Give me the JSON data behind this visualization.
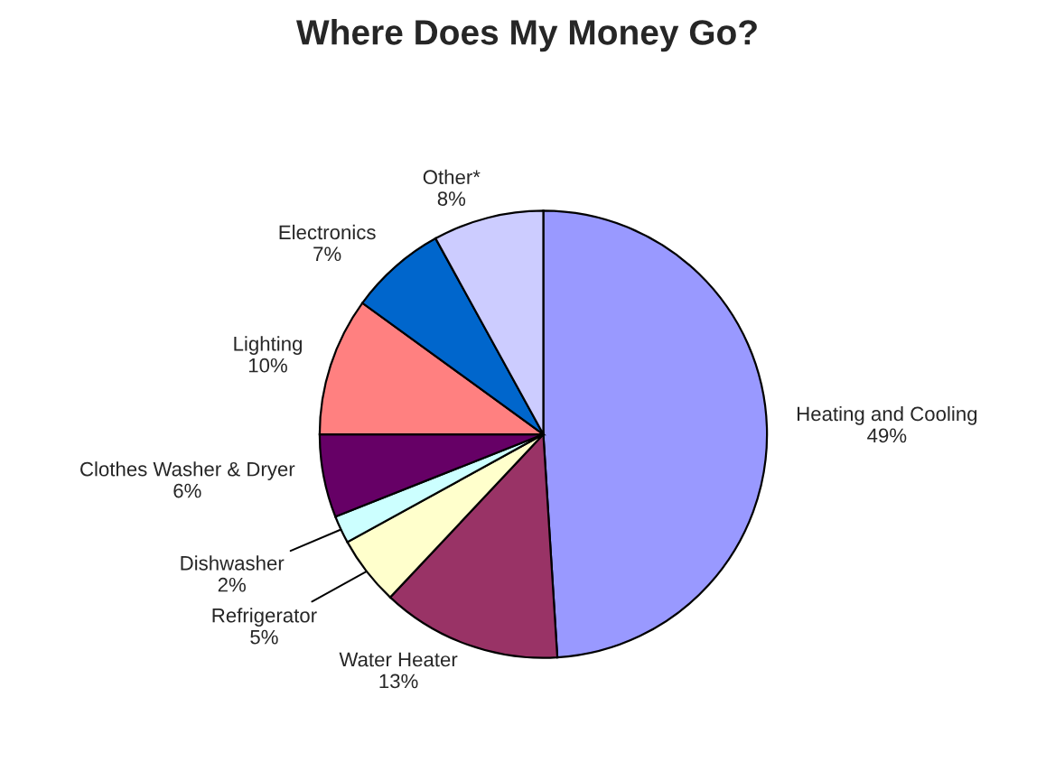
{
  "chart_data": {
    "type": "pie",
    "title": "Where Does My Money Go?",
    "categories": [
      "Heating and Cooling",
      "Water Heater",
      "Refrigerator",
      "Dishwasher",
      "Clothes Washer & Dryer",
      "Lighting",
      "Electronics",
      "Other*"
    ],
    "values": [
      49,
      13,
      5,
      2,
      6,
      10,
      7,
      8
    ],
    "value_labels": [
      "49%",
      "13%",
      "5%",
      "2%",
      "6%",
      "10%",
      "7%",
      "8%"
    ],
    "colors": [
      "#9999ff",
      "#993366",
      "#ffffcc",
      "#ccffff",
      "#660066",
      "#ff8080",
      "#0066cc",
      "#ccccff"
    ],
    "legend": false
  }
}
